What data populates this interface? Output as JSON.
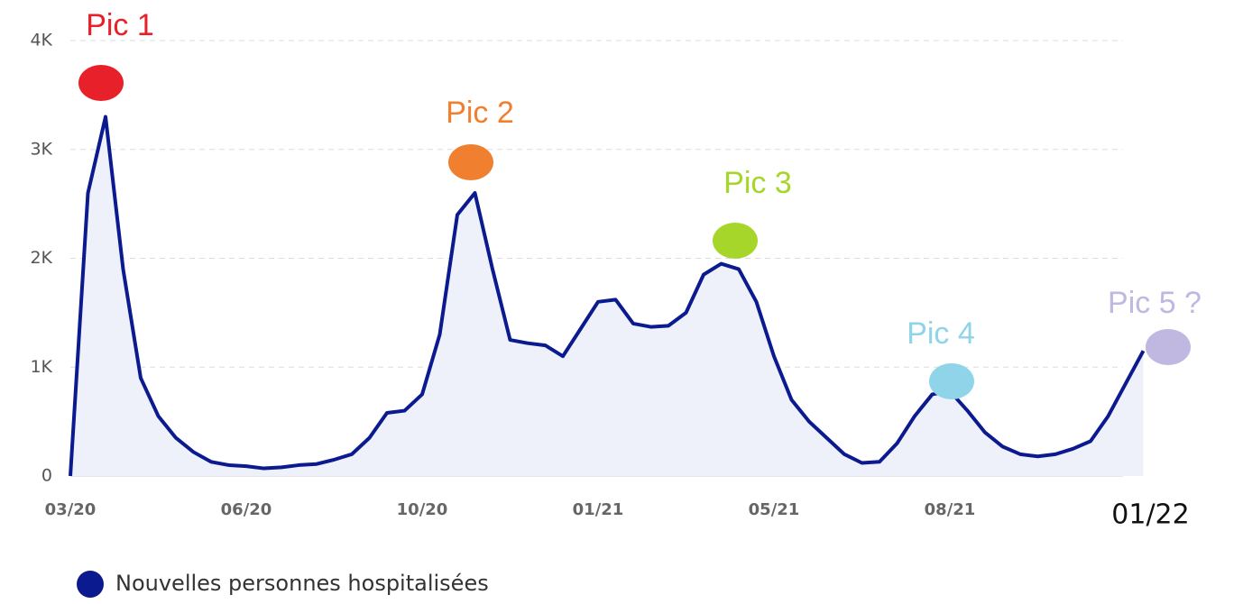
{
  "chart_data": {
    "type": "line",
    "categories": [
      "03/20",
      null,
      null,
      null,
      null,
      null,
      null,
      null,
      null,
      null,
      "06/20",
      null,
      null,
      null,
      null,
      null,
      null,
      null,
      null,
      null,
      "10/20",
      null,
      null,
      null,
      null,
      null,
      null,
      null,
      null,
      null,
      "01/21",
      null,
      null,
      null,
      null,
      null,
      null,
      null,
      null,
      null,
      "05/21",
      null,
      null,
      null,
      null,
      null,
      null,
      null,
      null,
      null,
      "08/21",
      null,
      null,
      null,
      null,
      null,
      null,
      null,
      null,
      null,
      null,
      "01/22"
    ],
    "series": [
      {
        "name": "Nouvelles personnes hospitalisées",
        "color": "#0b1a8f",
        "values": [
          0,
          2600,
          3300,
          1900,
          900,
          550,
          350,
          220,
          130,
          100,
          90,
          70,
          80,
          100,
          110,
          150,
          200,
          350,
          580,
          600,
          750,
          1300,
          2400,
          2600,
          1900,
          1250,
          1220,
          1200,
          1100,
          1350,
          1600,
          1620,
          1400,
          1370,
          1380,
          1500,
          1850,
          1950,
          1900,
          1600,
          1100,
          700,
          500,
          350,
          200,
          120,
          130,
          300,
          550,
          750,
          780,
          600,
          400,
          270,
          200,
          180,
          200,
          250,
          320,
          550,
          850,
          1150
        ]
      }
    ],
    "ylim": [
      0,
      4000
    ],
    "yticks": [
      0,
      {
        "value": 1000,
        "label": "1K"
      },
      {
        "value": 2000,
        "label": "2K"
      },
      {
        "value": 3000,
        "label": "3K"
      },
      {
        "value": 4000,
        "label": "4K"
      }
    ],
    "grid": true,
    "annotations": [
      {
        "text": "Pic 1",
        "color": "#e8202a"
      },
      {
        "text": "Pic 2",
        "color": "#f08030"
      },
      {
        "text": "Pic 3",
        "color": "#a6d62a"
      },
      {
        "text": "Pic 4",
        "color": "#8fd4e8"
      },
      {
        "text": "Pic 5 ?",
        "color": "#c0b8e0"
      }
    ]
  }
}
